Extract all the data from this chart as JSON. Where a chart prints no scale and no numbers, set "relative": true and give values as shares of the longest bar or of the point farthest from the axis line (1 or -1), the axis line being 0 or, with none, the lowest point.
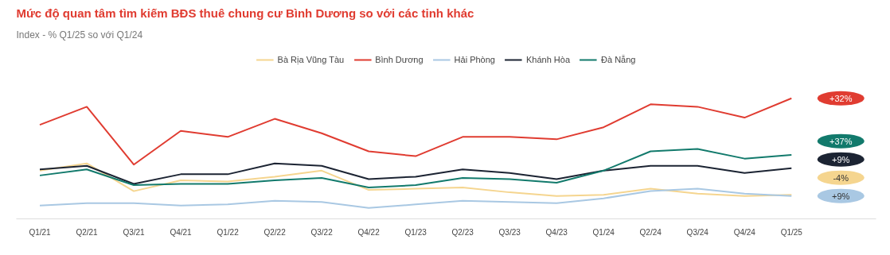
{
  "chart_data": {
    "type": "line",
    "title": "Mức độ quan tâm tìm kiếm BĐS thuê chung cư Bình Dương so với các tỉnh khác",
    "subtitle": "Index - % Q1/25 so với Q1/24",
    "relative": true,
    "grid": false,
    "legend": "top",
    "marker": "none",
    "line_style": "solid",
    "categories": [
      "Q1/21",
      "Q2/21",
      "Q3/21",
      "Q4/21",
      "Q1/22",
      "Q2/22",
      "Q3/22",
      "Q4/22",
      "Q1/23",
      "Q2/23",
      "Q3/23",
      "Q4/23",
      "Q1/24",
      "Q2/24",
      "Q3/24",
      "Q4/24",
      "Q1/25"
    ],
    "series": [
      {
        "name": "Bà Rịa Vũng Tàu",
        "color": "#f5d58f",
        "values": [
          0.4,
          0.46,
          0.23,
          0.32,
          0.31,
          0.35,
          0.4,
          0.24,
          0.25,
          0.26,
          0.22,
          0.19,
          0.2,
          0.25,
          0.21,
          0.19,
          0.2
        ]
      },
      {
        "name": "Bình Dương",
        "color": "#e03c31",
        "values": [
          0.78,
          0.93,
          0.45,
          0.73,
          0.68,
          0.83,
          0.71,
          0.56,
          0.52,
          0.68,
          0.68,
          0.66,
          0.76,
          0.95,
          0.93,
          0.84,
          1.0
        ]
      },
      {
        "name": "Hải Phòng",
        "color": "#a9c8e3",
        "values": [
          0.11,
          0.13,
          0.13,
          0.11,
          0.12,
          0.15,
          0.14,
          0.09,
          0.12,
          0.15,
          0.14,
          0.13,
          0.17,
          0.23,
          0.25,
          0.21,
          0.19
        ]
      },
      {
        "name": "Khánh Hòa",
        "color": "#1c2433",
        "values": [
          0.41,
          0.44,
          0.29,
          0.37,
          0.37,
          0.46,
          0.44,
          0.33,
          0.35,
          0.41,
          0.38,
          0.33,
          0.4,
          0.44,
          0.44,
          0.38,
          0.42
        ]
      },
      {
        "name": "Đà Nẵng",
        "color": "#127a6c",
        "values": [
          0.36,
          0.41,
          0.28,
          0.29,
          0.29,
          0.32,
          0.34,
          0.26,
          0.28,
          0.34,
          0.33,
          0.3,
          0.4,
          0.56,
          0.58,
          0.5,
          0.53
        ]
      }
    ],
    "annotations": [
      "-4%",
      "+32%",
      "+9%",
      "+9%",
      "+37%"
    ]
  }
}
